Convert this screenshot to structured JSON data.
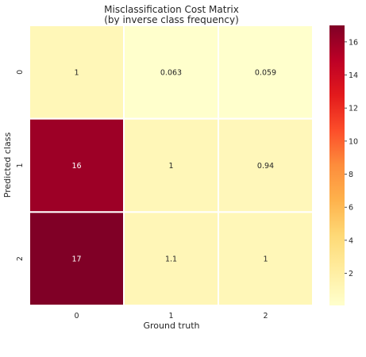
{
  "chart_data": {
    "type": "heatmap",
    "title_lines": [
      "Misclassification Cost Matrix",
      "(by inverse class frequency)"
    ],
    "xlabel": "Ground truth",
    "ylabel": "Predicted class",
    "x_categories": [
      "0",
      "1",
      "2"
    ],
    "y_categories": [
      "0",
      "1",
      "2"
    ],
    "values": [
      [
        1,
        0.0625,
        0.0588
      ],
      [
        16,
        1,
        0.9412
      ],
      [
        17,
        1.0625,
        1
      ]
    ],
    "value_labels": [
      [
        "1",
        "0.063",
        "0.059"
      ],
      [
        "16",
        "1",
        "0.94"
      ],
      [
        "17",
        "1.1",
        "1"
      ]
    ],
    "color_range": [
      0.0588,
      17
    ],
    "colormap": "YlOrRd",
    "colorbar_ticks": [
      "2",
      "4",
      "6",
      "8",
      "10",
      "12",
      "14",
      "16"
    ],
    "colorbar_tick_values": [
      2,
      4,
      6,
      8,
      10,
      12,
      14,
      16
    ]
  }
}
